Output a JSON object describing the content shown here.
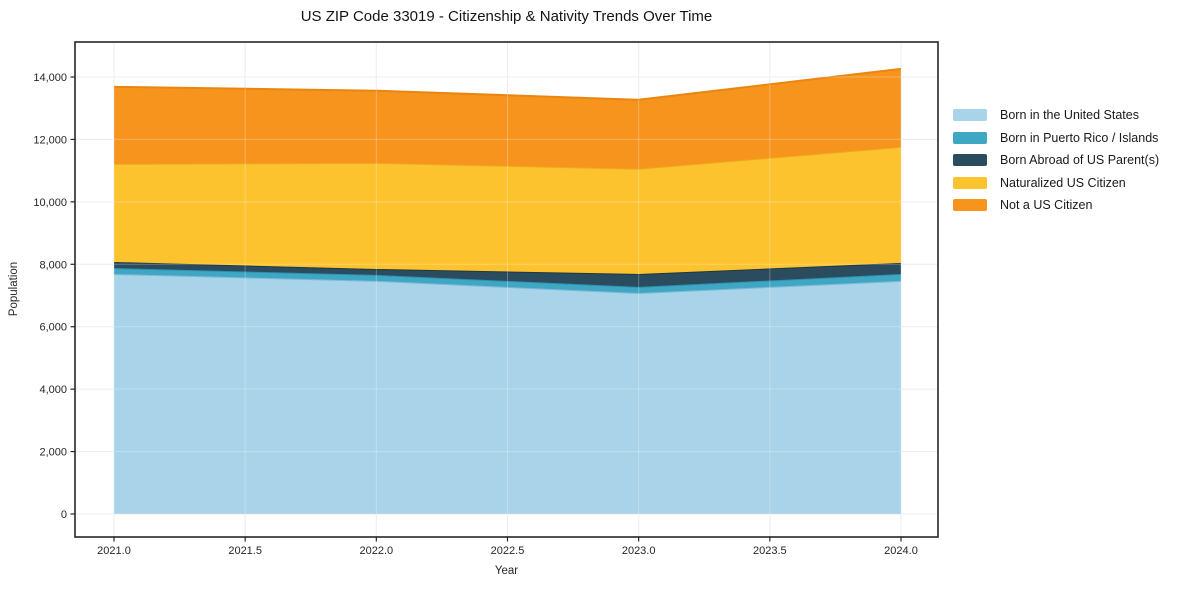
{
  "title": "US ZIP Code 33019 - Citizenship & Nativity Trends Over Time",
  "chart_data": {
    "type": "area",
    "stacked": true,
    "title": "US ZIP Code 33019 - Citizenship & Nativity Trends Over Time",
    "xlabel": "Year",
    "ylabel": "Population",
    "x": [
      2021,
      2022,
      2023,
      2024
    ],
    "series": [
      {
        "name": "Born in the United States",
        "color": "#A8D3E8",
        "edge_color": "#7FB9D6",
        "values": [
          7690,
          7470,
          7080,
          7470
        ]
      },
      {
        "name": "Born in Puerto Rico / Islands",
        "color": "#3FA7C3",
        "edge_color": "#2D91AF",
        "values": [
          190,
          190,
          195,
          220
        ]
      },
      {
        "name": "Born Abroad of US Parent(s)",
        "color": "#2B4B5E",
        "edge_color": "#1E3846",
        "values": [
          195,
          190,
          415,
          355
        ]
      },
      {
        "name": "Naturalized US Citizen",
        "color": "#FDC32E",
        "edge_color": "#EDAD1A",
        "values": [
          3140,
          3400,
          3370,
          3715
        ]
      },
      {
        "name": "Not a US Citizen",
        "color": "#F7941E",
        "edge_color": "#E8860F",
        "values": [
          2470,
          2310,
          2210,
          2500
        ]
      }
    ],
    "stacked_totals": [
      13685,
      13560,
      13270,
      14260
    ],
    "x_ticks": [
      2021.0,
      2021.5,
      2022.0,
      2022.5,
      2023.0,
      2023.5,
      2024.0
    ],
    "x_tick_labels": [
      "2021.0",
      "2021.5",
      "2022.0",
      "2022.5",
      "2023.0",
      "2023.5",
      "2024.0"
    ],
    "y_ticks": [
      0,
      2000,
      4000,
      6000,
      8000,
      10000,
      12000,
      14000
    ],
    "y_tick_labels": [
      "0",
      "2,000",
      "4,000",
      "6,000",
      "8,000",
      "10,000",
      "12,000",
      "14,000"
    ],
    "ylim": [
      0,
      14000
    ],
    "grid": true,
    "legend_position": "right",
    "grid_color": "#e7e7e7",
    "frame_color": "#262626",
    "background_color": "#ffffff"
  }
}
